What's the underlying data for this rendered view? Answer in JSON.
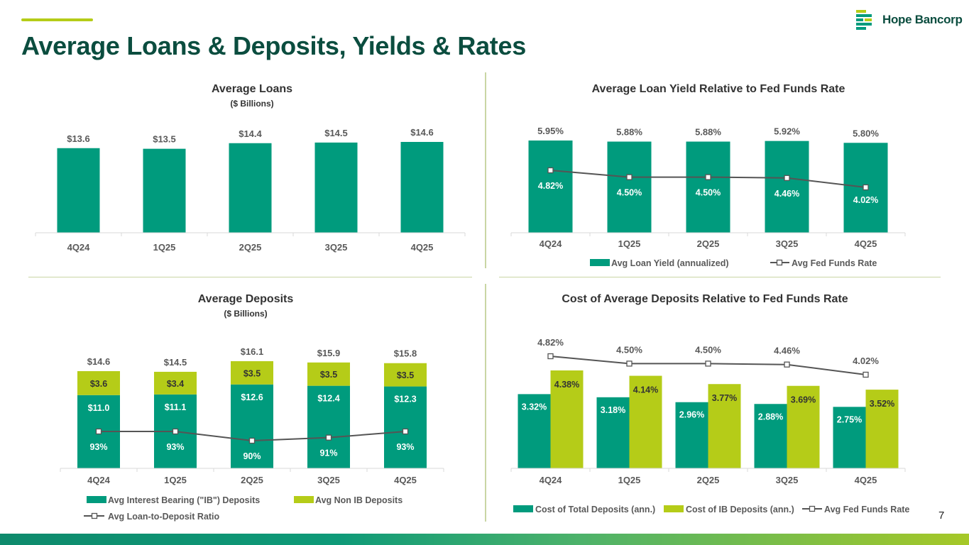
{
  "page": {
    "title": "Average Loans & Deposits, Yields & Rates",
    "logo_text": "Hope Bancorp",
    "page_number": "7"
  },
  "colors": {
    "teal": "#009b7d",
    "lime": "#b5cc18",
    "line": "#555555",
    "title_green": "#0b4d3f"
  },
  "chart_data": [
    {
      "id": "loans",
      "type": "bar",
      "title": "Average Loans",
      "subtitle": "($ Billions)",
      "categories": [
        "4Q24",
        "1Q25",
        "2Q25",
        "3Q25",
        "4Q25"
      ],
      "series": [
        {
          "name": "Average Loans",
          "values": [
            13.6,
            13.5,
            14.4,
            14.5,
            14.6
          ],
          "labels": [
            "$13.6",
            "$13.5",
            "$14.4",
            "$14.5",
            "$14.6"
          ]
        }
      ],
      "ylim": [
        0,
        18
      ]
    },
    {
      "id": "loan_yield",
      "type": "bar",
      "title": "Average Loan Yield Relative to Fed Funds Rate",
      "categories": [
        "4Q24",
        "1Q25",
        "2Q25",
        "3Q25",
        "4Q25"
      ],
      "series": [
        {
          "name": "Avg Loan Yield (annualized)",
          "kind": "bar",
          "values": [
            5.95,
            5.88,
            5.88,
            5.92,
            5.8
          ],
          "labels": [
            "5.95%",
            "5.88%",
            "5.88%",
            "5.92%",
            "5.80%"
          ]
        },
        {
          "name": "Avg Fed Funds Rate",
          "kind": "line",
          "values": [
            4.82,
            4.5,
            4.5,
            4.46,
            4.02
          ],
          "labels": [
            "4.82%",
            "4.50%",
            "4.50%",
            "4.46%",
            "4.02%"
          ]
        }
      ],
      "ylim": [
        0,
        7
      ]
    },
    {
      "id": "deposits",
      "type": "bar",
      "stacked": true,
      "title": "Average Deposits",
      "subtitle": "($ Billions)",
      "categories": [
        "4Q24",
        "1Q25",
        "2Q25",
        "3Q25",
        "4Q25"
      ],
      "totals": [
        "$14.6",
        "$14.5",
        "$16.1",
        "$15.9",
        "$15.8"
      ],
      "series": [
        {
          "name": "Avg Interest Bearing (\"IB\") Deposits",
          "kind": "bar",
          "values": [
            11.0,
            11.1,
            12.6,
            12.4,
            12.3
          ],
          "labels": [
            "$11.0",
            "$11.1",
            "$12.6",
            "$12.4",
            "$12.3"
          ]
        },
        {
          "name": "Avg Non IB Deposits",
          "kind": "bar",
          "values": [
            3.6,
            3.4,
            3.5,
            3.5,
            3.5
          ],
          "labels": [
            "$3.6",
            "$3.4",
            "$3.5",
            "$3.5",
            "$3.5"
          ]
        },
        {
          "name": "Avg Loan-to-Deposit Ratio",
          "kind": "line",
          "values": [
            93,
            93,
            90,
            91,
            93
          ],
          "labels": [
            "93%",
            "93%",
            "90%",
            "91%",
            "93%"
          ]
        }
      ],
      "ylim": [
        0,
        20
      ]
    },
    {
      "id": "deposit_cost",
      "type": "bar",
      "title": "Cost of Average Deposits Relative to Fed Funds Rate",
      "categories": [
        "4Q24",
        "1Q25",
        "2Q25",
        "3Q25",
        "4Q25"
      ],
      "series": [
        {
          "name": "Cost of Total Deposits (ann.)",
          "kind": "bar",
          "values": [
            3.32,
            3.18,
            2.96,
            2.88,
            2.75
          ],
          "labels": [
            "3.32%",
            "3.18%",
            "2.96%",
            "2.88%",
            "2.75%"
          ]
        },
        {
          "name": "Cost of IB Deposits (ann.)",
          "kind": "bar",
          "values": [
            4.38,
            4.14,
            3.77,
            3.69,
            3.52
          ],
          "labels": [
            "4.38%",
            "4.14%",
            "3.77%",
            "3.69%",
            "3.52%"
          ]
        },
        {
          "name": "Avg Fed Funds Rate",
          "kind": "line",
          "values": [
            4.82,
            4.5,
            4.5,
            4.46,
            4.02
          ],
          "labels": [
            "4.82%",
            "4.50%",
            "4.50%",
            "4.46%",
            "4.02%"
          ]
        }
      ],
      "ylim": [
        0,
        6
      ]
    }
  ]
}
